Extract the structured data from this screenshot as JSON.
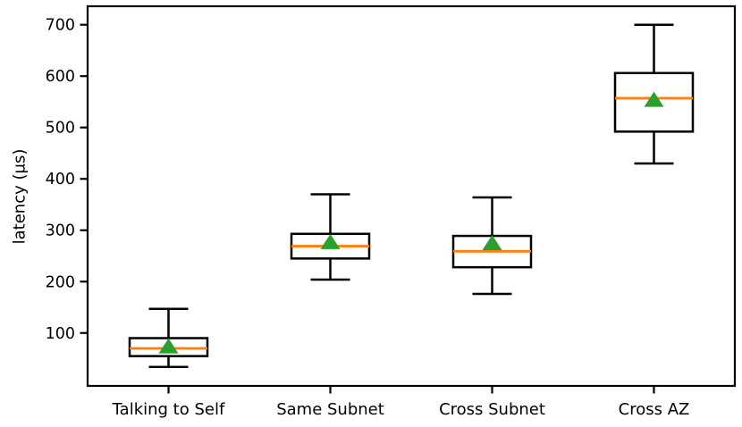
{
  "chart_data": {
    "type": "box",
    "title": "",
    "ylabel": "latency (µs)",
    "xlabel": "",
    "categories": [
      "Talking to Self",
      "Same Subnet",
      "Cross Subnet",
      "Cross AZ"
    ],
    "yticks": [
      100,
      200,
      300,
      400,
      500,
      600,
      700
    ],
    "ylim": [
      -3,
      736
    ],
    "grid": false,
    "legend": false,
    "mean_marker_shape": "triangle-up",
    "boxes": [
      {
        "label": "Talking to Self",
        "whislo": 34,
        "q1": 55,
        "med": 70,
        "q3": 90,
        "whishi": 147,
        "mean": 75
      },
      {
        "label": "Same Subnet",
        "whislo": 204,
        "q1": 245,
        "med": 269,
        "q3": 293,
        "whishi": 370,
        "mean": 278
      },
      {
        "label": "Cross Subnet",
        "whislo": 176,
        "q1": 228,
        "med": 259,
        "q3": 289,
        "whishi": 364,
        "mean": 276
      },
      {
        "label": "Cross AZ",
        "whislo": 430,
        "q1": 492,
        "med": 557,
        "q3": 606,
        "whishi": 700,
        "mean": 555
      }
    ],
    "colors": {
      "box_edge": "#000000",
      "whisker": "#000000",
      "median": "#ff7f0e",
      "mean_marker": "#2ca02c",
      "axis": "#000000",
      "text": "#000000",
      "background": "#ffffff"
    }
  }
}
